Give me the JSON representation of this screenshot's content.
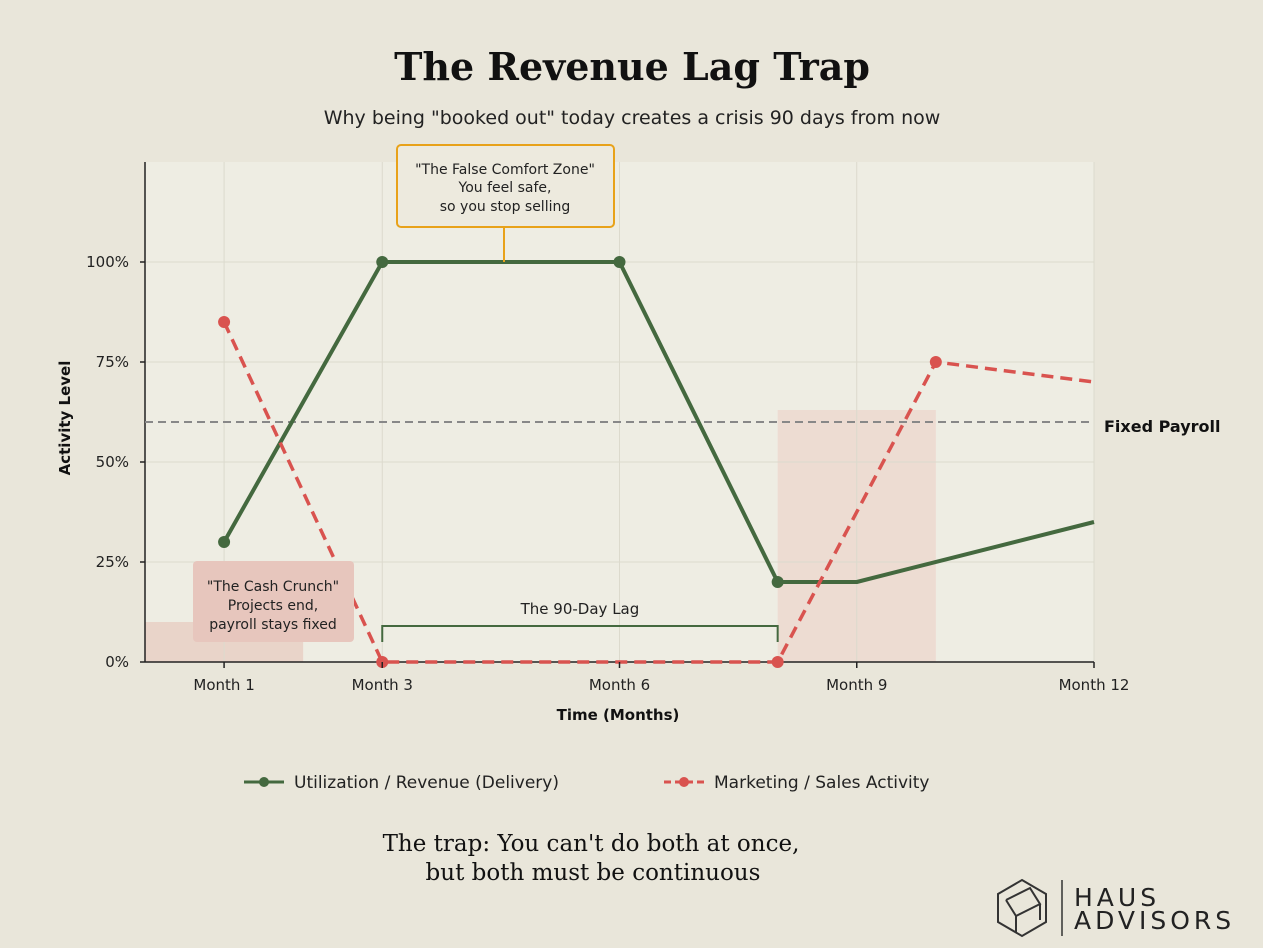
{
  "chart_data": {
    "type": "line",
    "title": "The Revenue Lag Trap",
    "subtitle": "Why being \"booked out\" today creates a crisis 90 days from now",
    "xlabel": "Time (Months)",
    "ylabel": "Activity Level",
    "x_ticks": [
      {
        "x": 1,
        "label": "Month 1"
      },
      {
        "x": 3,
        "label": "Month 3"
      },
      {
        "x": 6,
        "label": "Month 6"
      },
      {
        "x": 9,
        "label": "Month 9"
      },
      {
        "x": 12,
        "label": "Month 12"
      }
    ],
    "y_ticks": [
      {
        "y": 0,
        "label": "0%"
      },
      {
        "y": 25,
        "label": "25%"
      },
      {
        "y": 50,
        "label": "50%"
      },
      {
        "y": 75,
        "label": "75%"
      },
      {
        "y": 100,
        "label": "100%"
      }
    ],
    "xlim": [
      0,
      12
    ],
    "ylim": [
      0,
      125
    ],
    "grid": true,
    "series": [
      {
        "name": "Utilization / Revenue (Delivery)",
        "color": "#44693f",
        "style": "solid",
        "points": [
          [
            1,
            30
          ],
          [
            3,
            100
          ],
          [
            6,
            100
          ],
          [
            8,
            20
          ],
          [
            9,
            20
          ],
          [
            12,
            35
          ]
        ],
        "markers": [
          [
            1,
            30
          ],
          [
            3,
            100
          ],
          [
            6,
            100
          ],
          [
            8,
            20
          ]
        ]
      },
      {
        "name": "Marketing / Sales Activity",
        "color": "#d9534f",
        "style": "dashed",
        "points": [
          [
            1,
            85
          ],
          [
            3,
            0
          ],
          [
            6,
            0
          ],
          [
            8,
            0
          ],
          [
            10,
            75
          ],
          [
            12,
            70
          ]
        ],
        "markers": [
          [
            1,
            85
          ],
          [
            3,
            0
          ],
          [
            8,
            0
          ],
          [
            10,
            75
          ]
        ]
      }
    ],
    "reference_line": {
      "y": 60,
      "label": "Fixed Payroll",
      "color": "#888888"
    },
    "shaded_regions": [
      {
        "x0": 0,
        "x1": 2,
        "y0": 0,
        "y1": 10,
        "color": "#e8cfc4"
      },
      {
        "x0": 8,
        "x1": 10,
        "y0": 0,
        "y1": 63,
        "color": "#ecd8cf"
      }
    ],
    "bracket": {
      "x0": 3,
      "x1": 8,
      "y": 9,
      "label": "The 90-Day Lag",
      "color": "#44693f"
    },
    "annotations": [
      {
        "id": "false-comfort",
        "lines": [
          "\"The False Comfort Zone\"",
          "You feel safe,",
          "so you stop selling"
        ],
        "anchor": [
          4.5,
          100
        ],
        "border": "#e8a21a",
        "fill": "#edeade"
      },
      {
        "id": "cash-crunch",
        "lines": [
          "\"The Cash Crunch\"",
          "Projects end,",
          "payroll stays fixed"
        ],
        "anchor": [
          1.6,
          14
        ],
        "fill": "#e7c6bd"
      }
    ],
    "legend_placement": "bottom"
  },
  "footer": {
    "tagline_lines": [
      "The trap: You can't do both at once,",
      "but both must be continuous"
    ]
  },
  "logo": {
    "top": "HAUS",
    "bottom": "ADVISORS"
  }
}
